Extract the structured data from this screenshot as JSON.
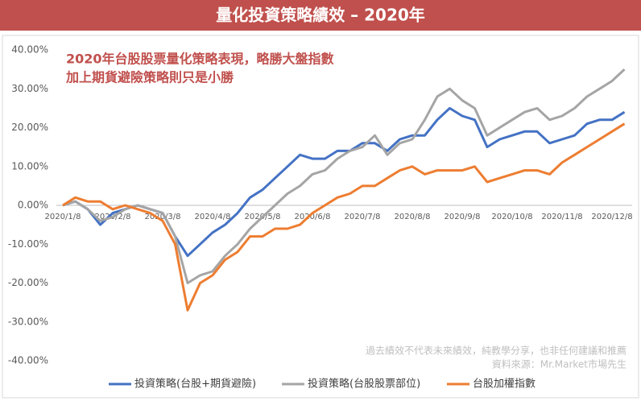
{
  "chart_data": {
    "type": "line",
    "title": "量化投資策略績效 – 2020年",
    "annotation": [
      "2020年台股股票量化策略表現，略勝大盤指數",
      "加上期貨避險策略則只是小勝"
    ],
    "note": [
      "過去績效不代表未來績效，純教學分享，也非任何建議和推薦",
      "資料來源：Mr.Market市場先生"
    ],
    "categories": [
      "2020/1/8",
      null,
      null,
      null,
      "2020/2/8",
      null,
      null,
      null,
      "2020/3/8",
      null,
      null,
      null,
      "2020/4/8",
      null,
      null,
      null,
      "2020/5/8",
      null,
      null,
      null,
      "2020/6/8",
      null,
      null,
      null,
      "2020/7/8",
      null,
      null,
      null,
      "2020/8/8",
      null,
      null,
      null,
      "2020/9/8",
      null,
      null,
      null,
      "2020/10/8",
      null,
      null,
      null,
      "2020/11/8",
      null,
      null,
      null,
      "2020/12/8",
      null
    ],
    "series": [
      {
        "name": "投資策略(台股+期貨避險)",
        "color": "#4472c4",
        "values": [
          0,
          1,
          -1,
          -5,
          -2,
          -1,
          0,
          -1,
          -2,
          -8,
          -13,
          -10,
          -7,
          -5,
          -2,
          2,
          4,
          7,
          10,
          13,
          12,
          12,
          14,
          14,
          16,
          16,
          14,
          17,
          18,
          18,
          22,
          25,
          23,
          22,
          15,
          17,
          18,
          19,
          19,
          16,
          17,
          18,
          21,
          22,
          22,
          24
        ]
      },
      {
        "name": "投資策略(台股股票部位)",
        "color": "#a5a5a5",
        "values": [
          0,
          1,
          -1,
          -4,
          -3,
          -1,
          0,
          -1,
          -2,
          -8,
          -20,
          -18,
          -17,
          -13,
          -10,
          -6,
          -3,
          0,
          3,
          5,
          8,
          9,
          12,
          14,
          15,
          18,
          13,
          16,
          17,
          22,
          28,
          30,
          27,
          25,
          18,
          20,
          22,
          24,
          25,
          22,
          23,
          25,
          28,
          30,
          32,
          35
        ]
      },
      {
        "name": "台股加權指數",
        "color": "#ed7d31",
        "values": [
          0,
          2,
          1,
          1,
          -1,
          0,
          -1,
          -2,
          -4,
          -10,
          -27,
          -20,
          -18,
          -14,
          -12,
          -8,
          -8,
          -6,
          -6,
          -5,
          -2,
          0,
          2,
          3,
          5,
          5,
          7,
          9,
          10,
          8,
          9,
          9,
          9,
          10,
          6,
          7,
          8,
          9,
          9,
          8,
          11,
          13,
          15,
          17,
          19,
          21
        ]
      }
    ],
    "ylim": [
      -40,
      40
    ],
    "yticks": [
      {
        "value": -40,
        "label": "-40.00%"
      },
      {
        "value": -30,
        "label": "-30.00%"
      },
      {
        "value": -20,
        "label": "-20.00%"
      },
      {
        "value": -10,
        "label": "-10.00%"
      },
      {
        "value": 0,
        "label": "0.00%"
      },
      {
        "value": 10,
        "label": "10.00%"
      },
      {
        "value": 20,
        "label": "20.00%"
      },
      {
        "value": 30,
        "label": "30.00%"
      },
      {
        "value": 40,
        "label": "40.00%"
      }
    ],
    "grid": false
  }
}
